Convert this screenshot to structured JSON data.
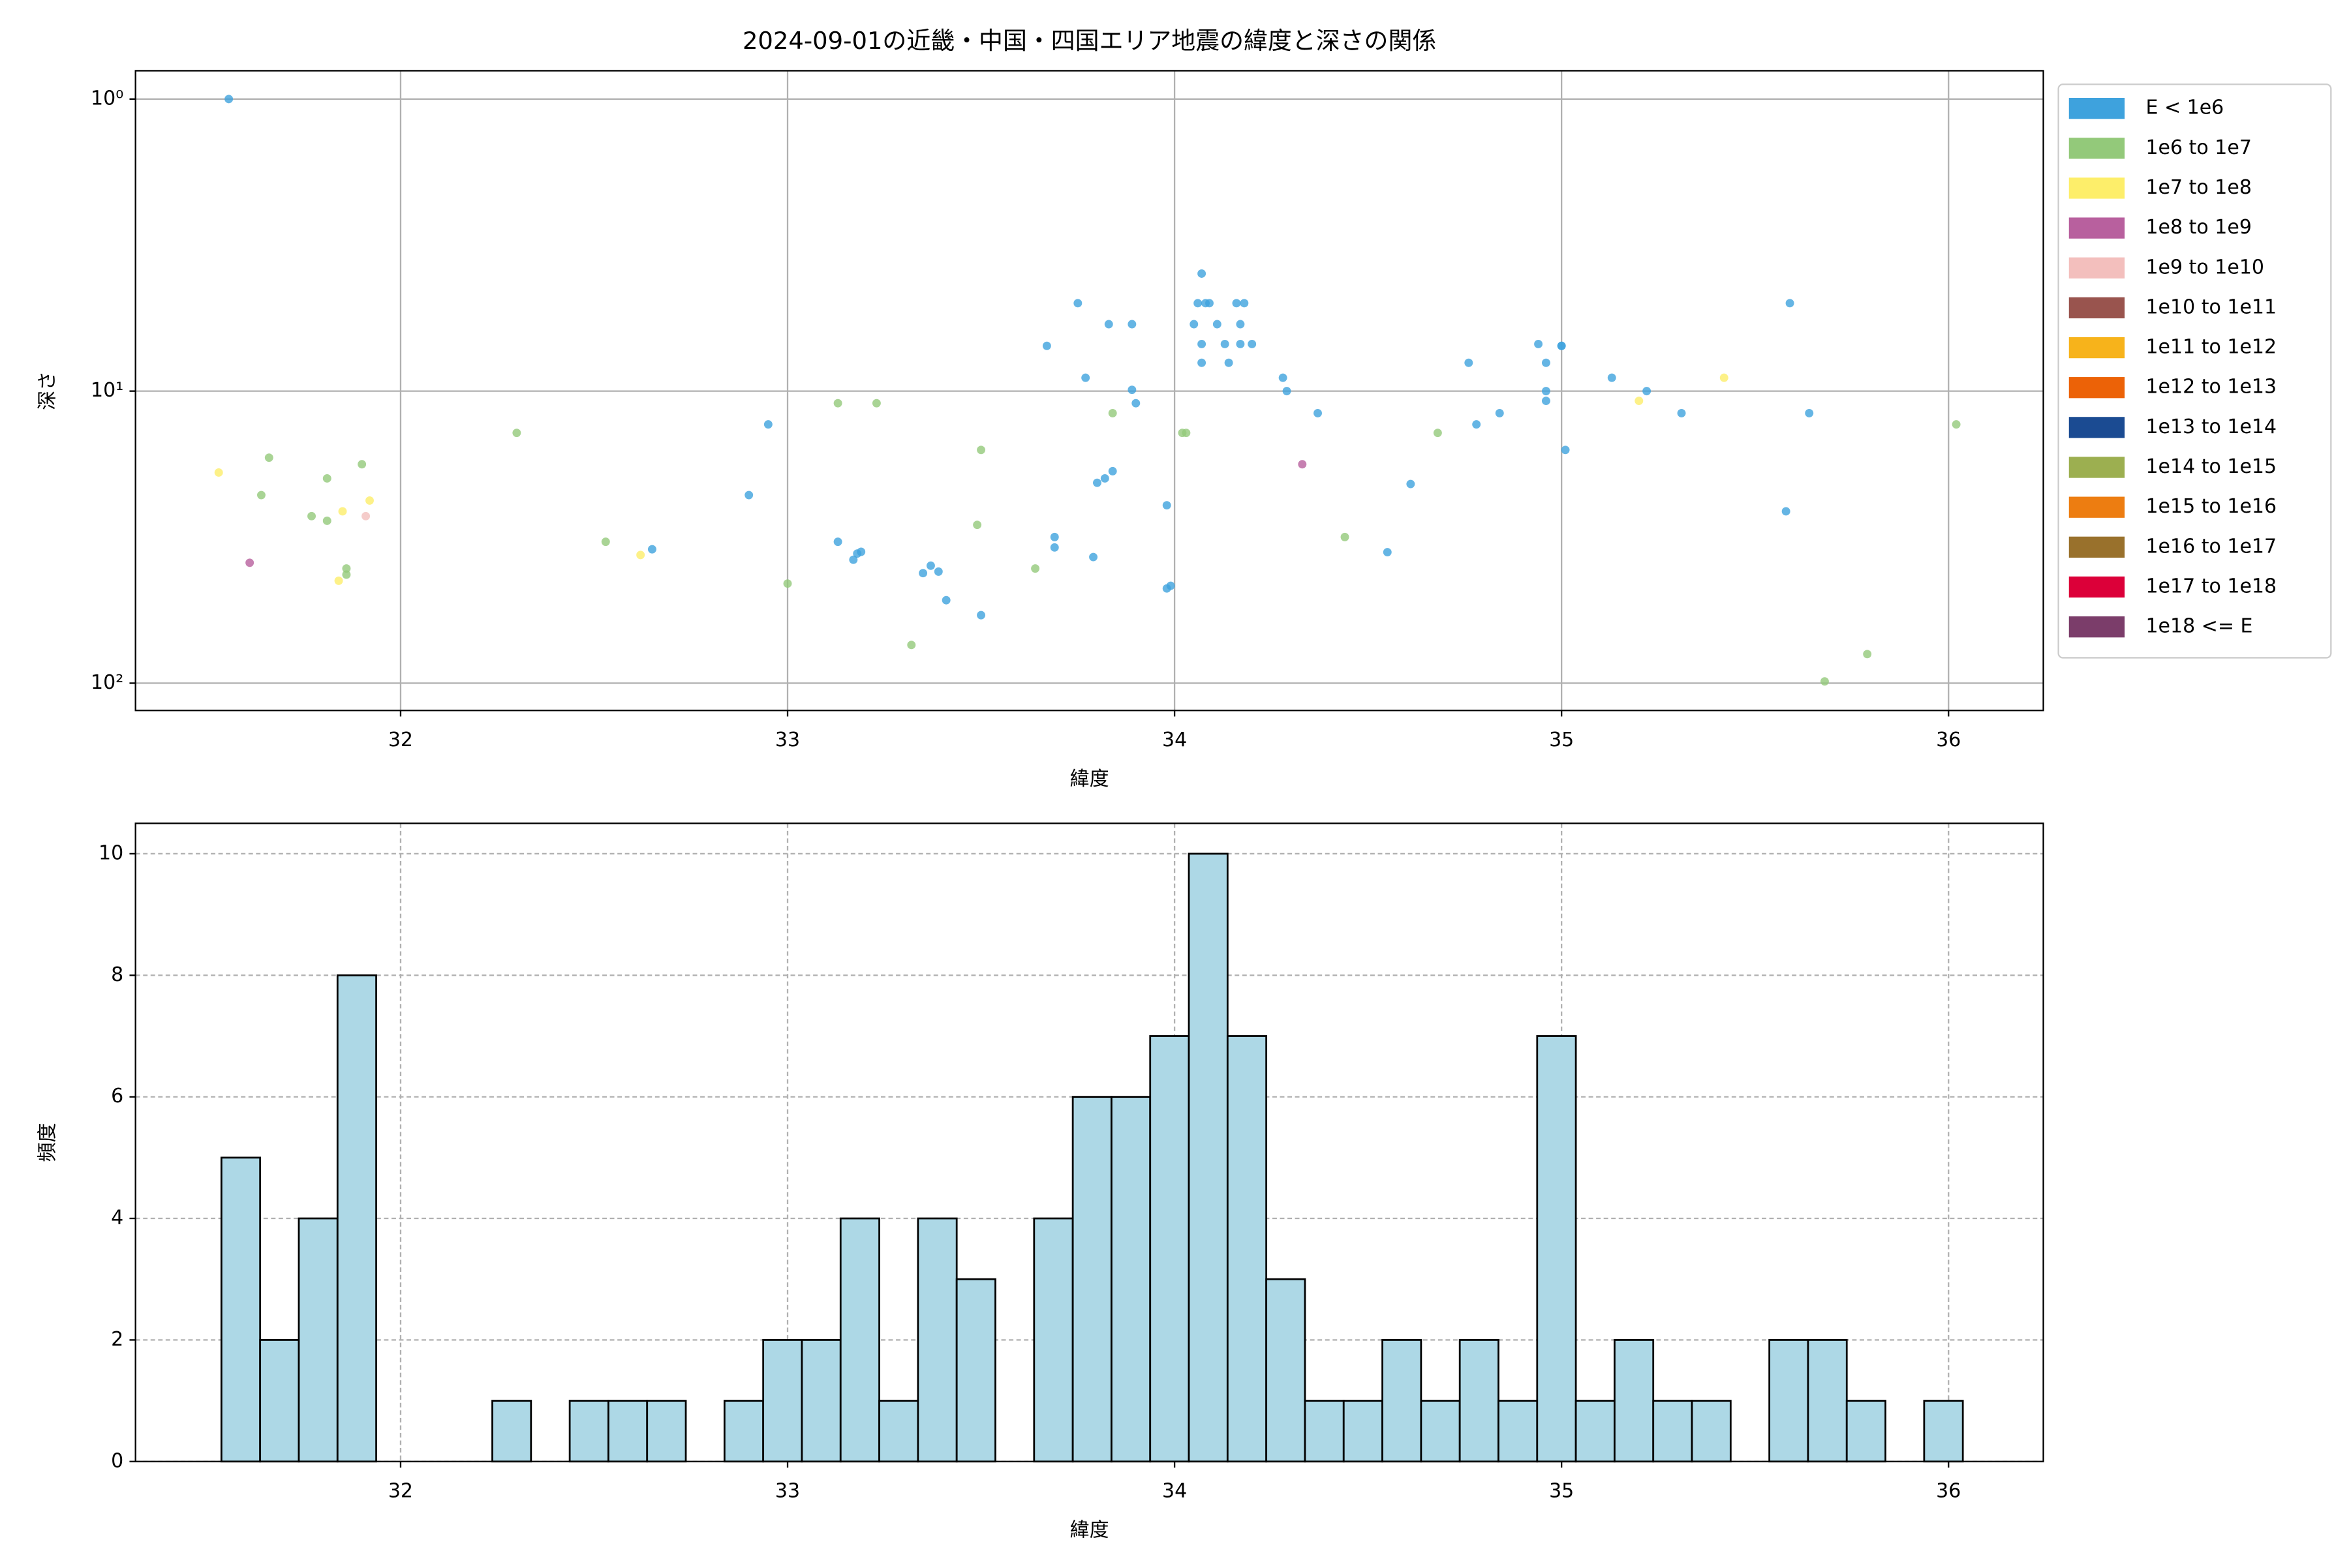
{
  "chart_data": [
    {
      "type": "scatter",
      "title": "2024-09-01の近畿・中国・四国エリア地震の緯度と深さの関係",
      "xlabel": "緯度",
      "ylabel": "深さ",
      "xlim": [
        31.315,
        36.245
      ],
      "xticks": [
        32,
        33,
        34,
        35,
        36
      ],
      "ylim": [
        0.8,
        124
      ],
      "yscale": "log",
      "y_inverted": true,
      "yticks": [
        {
          "value": 1,
          "label": "10⁰"
        },
        {
          "value": 10,
          "label": "10¹"
        },
        {
          "value": 100,
          "label": "10²"
        }
      ],
      "grid": true,
      "legend": "outside right",
      "series": [
        {
          "name": "E < 1e6",
          "color": "#3ea2dd",
          "x": [
            31.556,
            32.65,
            32.9,
            32.95,
            33.13,
            33.17,
            33.18,
            33.19,
            33.35,
            33.37,
            33.39,
            33.41,
            33.5,
            33.67,
            33.69,
            33.69,
            33.75,
            33.77,
            33.79,
            33.8,
            33.82,
            33.83,
            33.84,
            33.89,
            33.89,
            33.9,
            33.98,
            33.98,
            33.99,
            34.05,
            34.06,
            34.07,
            34.07,
            34.07,
            34.08,
            34.09,
            34.11,
            34.13,
            34.14,
            34.16,
            34.17,
            34.17,
            34.18,
            34.2,
            34.28,
            34.29,
            34.37,
            34.55,
            34.61,
            34.76,
            34.78,
            34.84,
            34.94,
            34.96,
            34.96,
            34.96,
            35.0,
            35.0,
            35.01,
            35.13,
            35.22,
            35.31,
            35.58,
            35.59,
            35.64
          ],
          "values": [
            1.0,
            34.8,
            22.7,
            13.0,
            32.8,
            37.8,
            36,
            35.5,
            42,
            39.6,
            41.5,
            52,
            58.5,
            7.0,
            31.6,
            34.3,
            5.0,
            9.0,
            37,
            20.6,
            19.9,
            5.9,
            18.8,
            5.9,
            9.9,
            11,
            24.6,
            47.4,
            46.4,
            5.9,
            5.0,
            3.96,
            6.9,
            8.0,
            5.0,
            5.0,
            5.9,
            6.9,
            8.0,
            5.0,
            6.9,
            5.9,
            5.0,
            6.9,
            9.0,
            10,
            11.9,
            35.6,
            20.8,
            8.0,
            13.0,
            11.9,
            6.9,
            8.0,
            10.8,
            10,
            7.0,
            7.0,
            15.9,
            9.0,
            10,
            11.9,
            25.8,
            5.0,
            11.9
          ]
        },
        {
          "name": "1e6 to 1e7",
          "color": "#93c97a",
          "x": [
            31.66,
            31.64,
            31.77,
            31.81,
            31.81,
            31.86,
            31.86,
            31.9,
            32.3,
            32.53,
            33.0,
            33.13,
            33.23,
            33.32,
            33.49,
            33.5,
            33.64,
            33.84,
            34.02,
            34.03,
            34.44,
            34.68,
            35.68,
            35.79,
            36.02
          ],
          "values": [
            16.9,
            22.7,
            26.8,
            27.8,
            19.9,
            40.5,
            42.5,
            17.8,
            13.9,
            32.8,
            45.6,
            11,
            11,
            74,
            28.7,
            15.9,
            40.5,
            11.9,
            13.9,
            13.9,
            31.6,
            13.9,
            98.6,
            79.5,
            13.0
          ]
        },
        {
          "name": "1e7 to 1e8",
          "color": "#fdee6a",
          "x": [
            31.53,
            31.84,
            31.85,
            31.92,
            32.62,
            35.2,
            35.42
          ],
          "values": [
            19.0,
            44.6,
            25.8,
            23.7,
            36.4,
            10.8,
            9.0
          ]
        },
        {
          "name": "1e8 to 1e9",
          "color": "#b8609e",
          "x": [
            31.61,
            34.33
          ],
          "values": [
            38.7,
            17.8
          ]
        },
        {
          "name": "1e9 to 1e10",
          "color": "#f3bfbd",
          "x": [
            31.91
          ],
          "values": [
            26.8
          ]
        },
        {
          "name": "1e10 to 1e11",
          "color": "#99544e",
          "x": [],
          "values": []
        },
        {
          "name": "1e11 to 1e12",
          "color": "#f7b31b",
          "x": [],
          "values": []
        },
        {
          "name": "1e12 to 1e13",
          "color": "#ec6207",
          "x": [],
          "values": []
        },
        {
          "name": "1e13 to 1e14",
          "color": "#1b4b92",
          "x": [],
          "values": []
        },
        {
          "name": "1e14 to 1e15",
          "color": "#9caf50",
          "x": [],
          "values": []
        },
        {
          "name": "1e15 to 1e16",
          "color": "#ed7d11",
          "x": [],
          "values": []
        },
        {
          "name": "1e16 to 1e17",
          "color": "#99712c",
          "x": [],
          "values": []
        },
        {
          "name": "1e17 to 1e18",
          "color": "#dc0039",
          "x": [],
          "values": []
        },
        {
          "name": "1e18 <= E",
          "color": "#7b3d6a",
          "x": [],
          "values": []
        }
      ]
    },
    {
      "type": "histogram",
      "xlabel": "緯度",
      "ylabel": "頻度",
      "xlim": [
        31.315,
        36.245
      ],
      "xticks": [
        32,
        33,
        34,
        35,
        36
      ],
      "ylim": [
        0,
        10.5
      ],
      "yticks": [
        0,
        2,
        4,
        6,
        8,
        10
      ],
      "grid": "dashed",
      "color": "#add8e6",
      "edgecolor": "#000000",
      "bins": [
        31.537,
        31.637,
        31.737,
        31.837,
        31.937,
        32.037,
        32.137,
        32.237,
        32.337,
        32.437,
        32.537,
        32.637,
        32.737,
        32.837,
        32.937,
        33.037,
        33.137,
        33.237,
        33.337,
        33.437,
        33.537,
        33.637,
        33.737,
        33.837,
        33.937,
        34.037,
        34.137,
        34.237,
        34.337,
        34.437,
        34.537,
        34.637,
        34.737,
        34.837,
        34.937,
        35.037,
        35.137,
        35.237,
        35.337,
        35.437,
        35.537,
        35.637,
        35.737,
        35.837,
        35.937,
        36.037
      ],
      "values": [
        5,
        2,
        4,
        8,
        0,
        0,
        0,
        1,
        0,
        1,
        1,
        1,
        0,
        1,
        2,
        2,
        4,
        1,
        4,
        3,
        0,
        4,
        6,
        6,
        7,
        10,
        7,
        3,
        1,
        1,
        2,
        1,
        2,
        1,
        7,
        1,
        2,
        1,
        1,
        0,
        2,
        2,
        1,
        0,
        1
      ]
    }
  ]
}
